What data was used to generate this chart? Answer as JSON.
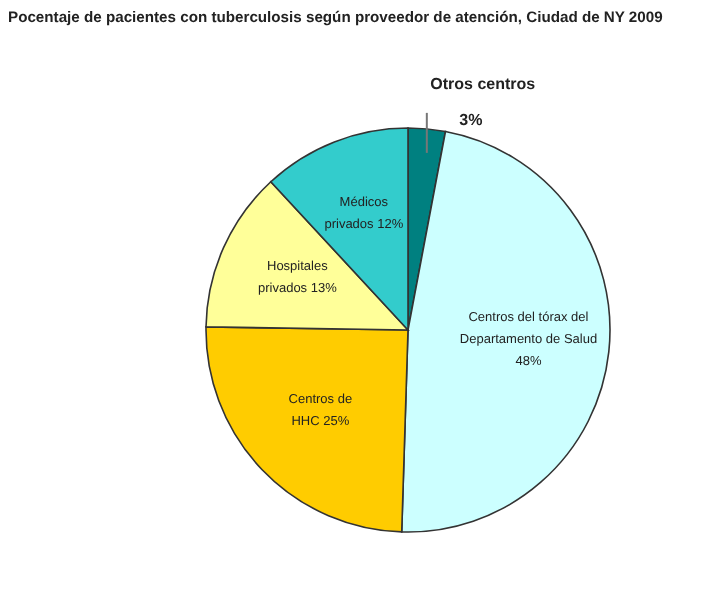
{
  "chart_data": {
    "type": "pie",
    "title": "Pocentaje de pacientes con tuberculosis según proveedor de atención, Ciudad de NY 2009",
    "categories": [
      "Otros centros",
      "Centros del tórax del Departamento de Salud",
      "Centros de HHC",
      "Hospitales privados",
      "Médicos privados"
    ],
    "values": [
      3,
      48,
      25,
      13,
      12
    ],
    "value_labels": [
      "3%",
      "48%",
      "25%",
      "13%",
      "12%"
    ],
    "colors": [
      "#008080",
      "#ccffff",
      "#ffcc00",
      "#ffff99",
      "#33cccc"
    ]
  }
}
